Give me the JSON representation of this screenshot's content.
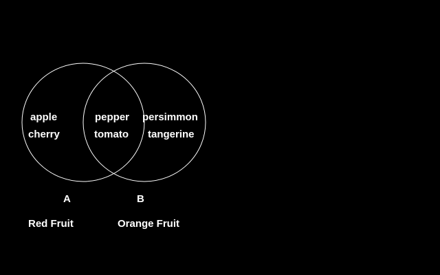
{
  "background_color": "#000000",
  "foreground_color": "#ffffff",
  "sets": {
    "a": {
      "letter": "A",
      "name": "Red Fruit",
      "only_items": [
        "apple",
        "cherry"
      ]
    },
    "b": {
      "letter": "B",
      "name": "Orange Fruit",
      "only_items": [
        "persimmon",
        "tangerine"
      ]
    },
    "intersection_items": [
      "pepper",
      "tomato"
    ]
  }
}
